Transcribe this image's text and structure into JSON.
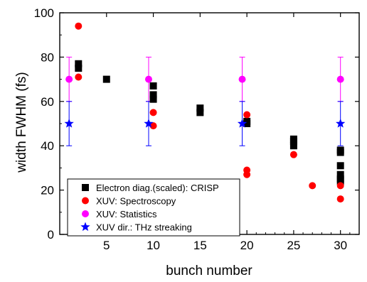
{
  "chart_data": {
    "type": "scatter",
    "title": "",
    "xlabel": "bunch number",
    "ylabel": "width FWHM  (fs)",
    "xlim": [
      0,
      32
    ],
    "ylim": [
      0,
      100
    ],
    "x_ticks": [
      5,
      10,
      15,
      20,
      25,
      30
    ],
    "y_ticks": [
      0,
      20,
      40,
      60,
      80,
      100
    ],
    "grid": false,
    "legend_position": "bottom-left",
    "series": [
      {
        "name": "Electron diag.(scaled): CRISP",
        "marker": "square",
        "color": "#000000",
        "points": [
          [
            2,
            77
          ],
          [
            2,
            75
          ],
          [
            5,
            70
          ],
          [
            10,
            67
          ],
          [
            10,
            63
          ],
          [
            10,
            61
          ],
          [
            15,
            57
          ],
          [
            15,
            55
          ],
          [
            20,
            51
          ],
          [
            20,
            50
          ],
          [
            25,
            43
          ],
          [
            25,
            42
          ],
          [
            25,
            40
          ],
          [
            30,
            38
          ],
          [
            30,
            37
          ],
          [
            30,
            31
          ],
          [
            30,
            27
          ],
          [
            30,
            25
          ],
          [
            30,
            24
          ]
        ]
      },
      {
        "name": "XUV: Spectroscopy",
        "marker": "circle",
        "color": "#ff0000",
        "points": [
          [
            2,
            94
          ],
          [
            2,
            71
          ],
          [
            10,
            55
          ],
          [
            10,
            49
          ],
          [
            20,
            54
          ],
          [
            20,
            29
          ],
          [
            20,
            27
          ],
          [
            25,
            36
          ],
          [
            27,
            22
          ],
          [
            30,
            22
          ],
          [
            30,
            16
          ]
        ]
      },
      {
        "name": "XUV: Statistics",
        "marker": "circle",
        "color": "#ff00ff",
        "error": 10,
        "points": [
          [
            1,
            70
          ],
          [
            9.5,
            70
          ],
          [
            19.5,
            70
          ],
          [
            30,
            70
          ]
        ]
      },
      {
        "name": "XUV dir.: THz streaking",
        "marker": "star",
        "color": "#0000ff",
        "error": 10,
        "points": [
          [
            1,
            50
          ],
          [
            9.5,
            50
          ],
          [
            19.5,
            50
          ],
          [
            30,
            50
          ]
        ]
      }
    ]
  }
}
